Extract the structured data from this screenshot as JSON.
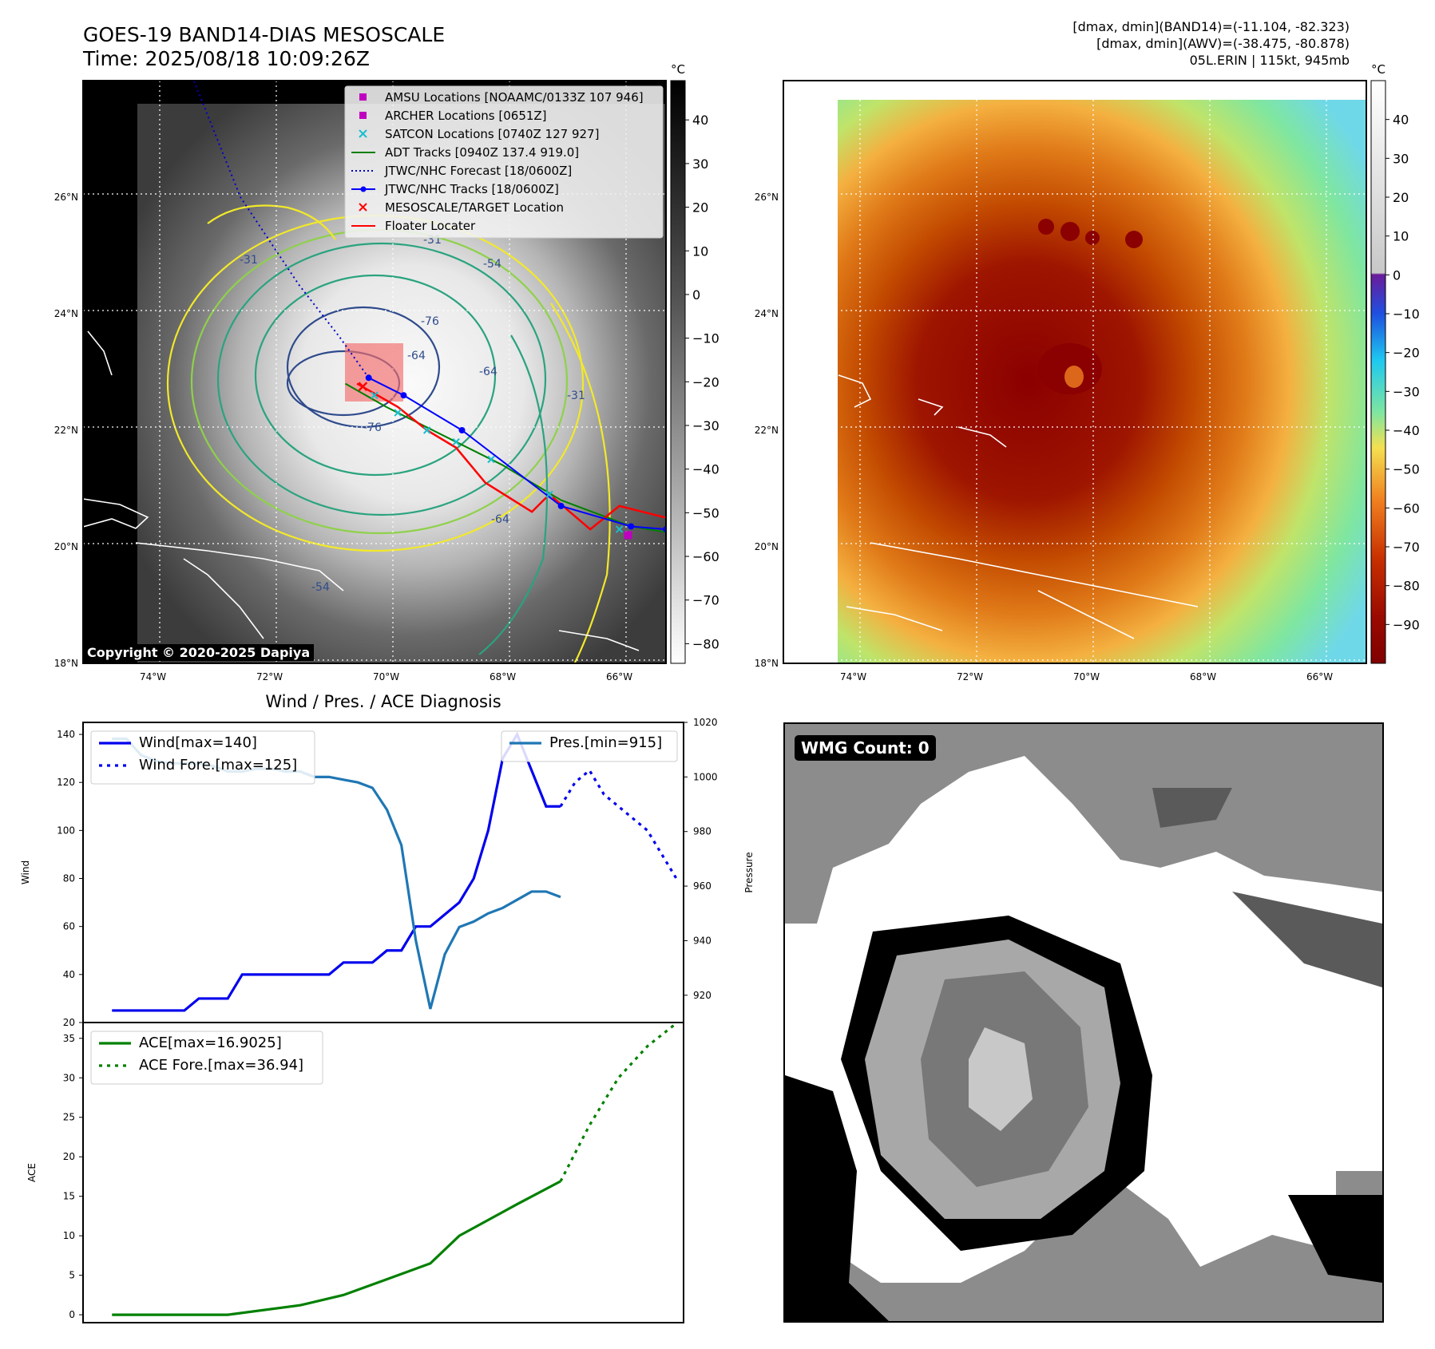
{
  "header": {
    "title_line1": "GOES-19 BAND14-DIAS MESOSCALE",
    "title_line2": "Time: 2025/08/18 10:09:26Z",
    "stats_line1": "[dmax, dmin](BAND14)=(-11.104, -82.323)",
    "stats_line2": "[dmax, dmin](AWV)=(-38.475, -80.878)",
    "stats_line3": "05L.ERIN | 115kt, 945mb"
  },
  "map": {
    "lon_labels": [
      "74°W",
      "72°W",
      "70°W",
      "68°W",
      "66°W"
    ],
    "lon_values": [
      -74,
      -72,
      -70,
      -68,
      -66
    ],
    "lat_labels": [
      "26°N",
      "24°N",
      "22°N",
      "20°N",
      "18°N"
    ],
    "lat_values": [
      26,
      24,
      22,
      20,
      18
    ],
    "lon_range": [
      -75.2,
      -65.2
    ],
    "lat_range": [
      18.0,
      28.0
    ],
    "copyright": "Copyright © 2020-2025 Dapiya",
    "contour_labels": [
      "-76",
      "-76",
      "-64",
      "-64",
      "-64",
      "-54",
      "-54",
      "-31",
      "-31",
      "-31"
    ],
    "legend": [
      {
        "label": "AMSU Locations [NOAAMC/0133Z 107 946]",
        "marker": "square",
        "color": "#c000c0"
      },
      {
        "label": "ARCHER Locations [0651Z]",
        "marker": "square",
        "color": "#c000c0"
      },
      {
        "label": "SATCON Locations [0740Z 127 927]",
        "marker": "x",
        "color": "#17becf"
      },
      {
        "label": "ADT Tracks [0940Z 137.4 919.0]",
        "marker": "line",
        "color": "#008000"
      },
      {
        "label": "JTWC/NHC Forecast [18/0600Z]",
        "marker": "dotted",
        "color": "#0000cc"
      },
      {
        "label": "JTWC/NHC Tracks [18/0600Z]",
        "marker": "line-dot",
        "color": "#0000ff"
      },
      {
        "label": "MESOSCALE/TARGET Location",
        "marker": "x",
        "color": "#ff0000"
      },
      {
        "label": "Floater Locater",
        "marker": "line",
        "color": "#ff0000"
      }
    ],
    "tracks": {
      "jtwc_lon": [
        -65.2,
        -65.8,
        -67.0,
        -68.7,
        -69.7,
        -70.3
      ],
      "jtwc_lat": [
        20.3,
        20.35,
        20.7,
        22.0,
        22.6,
        22.9
      ],
      "forecast_lon": [
        -70.3,
        -70.8,
        -71.5,
        -72.5,
        -73.3
      ],
      "forecast_lat": [
        22.9,
        23.6,
        24.5,
        26.0,
        28.0
      ],
      "adt_lon": [
        -65.2,
        -65.8,
        -67.0,
        -68.0,
        -69.0,
        -70.0,
        -70.7
      ],
      "adt_lat": [
        20.25,
        20.35,
        20.8,
        21.4,
        21.9,
        22.4,
        22.8
      ],
      "floater_lon": [
        -65.2,
        -66.0,
        -66.5,
        -67.2,
        -67.5,
        -68.3,
        -68.8,
        -69.3,
        -69.8,
        -70.5
      ],
      "floater_lat": [
        20.5,
        20.7,
        20.3,
        20.9,
        20.6,
        21.1,
        21.7,
        22.0,
        22.4,
        22.8
      ],
      "satcon_lon": [
        -66.0,
        -67.2,
        -68.2,
        -68.8,
        -69.3,
        -69.8,
        -70.2
      ],
      "satcon_lat": [
        20.3,
        20.9,
        21.5,
        21.8,
        22.0,
        22.3,
        22.6
      ],
      "amsu_lon": [
        -65.85
      ],
      "amsu_lat": [
        20.2
      ],
      "target_lon": [
        -70.4
      ],
      "target_lat": [
        22.75
      ]
    }
  },
  "colorbar_left": {
    "unit": "°C",
    "ticks": [
      "40",
      "30",
      "20",
      "10",
      "0",
      "−10",
      "−20",
      "−30",
      "−40",
      "−50",
      "−60",
      "−70",
      "−80"
    ],
    "values": [
      40,
      30,
      20,
      10,
      0,
      -10,
      -20,
      -30,
      -40,
      -50,
      -60,
      -70,
      -80
    ],
    "range": [
      -84.5,
      49
    ]
  },
  "colorbar_right": {
    "unit": "°C",
    "ticks": [
      "40",
      "30",
      "20",
      "10",
      "0",
      "−10",
      "−20",
      "−30",
      "−40",
      "−50",
      "−60",
      "−70",
      "−80",
      "−90"
    ],
    "values": [
      40,
      30,
      20,
      10,
      0,
      -10,
      -20,
      -30,
      -40,
      -50,
      -60,
      -70,
      -80,
      -90
    ],
    "range": [
      -100,
      50
    ]
  },
  "chart_data": [
    {
      "type": "line",
      "title": "Wind / Pres. / ACE Diagnosis",
      "ylabel": "Wind",
      "ylabel_right": "Pressure",
      "ylim": [
        20,
        145
      ],
      "ylim_right": [
        910,
        1020
      ],
      "yticks": [
        20,
        40,
        60,
        80,
        100,
        120,
        140
      ],
      "yticks_right": [
        920,
        940,
        960,
        980,
        1000,
        1020
      ],
      "xlim": [
        0,
        41.5
      ],
      "series": [
        {
          "name": "Wind[max=140]",
          "axis": "left",
          "style": "solid",
          "color": "#0000ee",
          "x": [
            2,
            3,
            4,
            5,
            6,
            7,
            8,
            9,
            10,
            11,
            12,
            13,
            14,
            15,
            16,
            17,
            18,
            19,
            20,
            21,
            22,
            23,
            24,
            25,
            26,
            27,
            28,
            29,
            30,
            31,
            32,
            33
          ],
          "values": [
            25,
            25,
            25,
            25,
            25,
            25,
            30,
            30,
            30,
            40,
            40,
            40,
            40,
            40,
            40,
            40,
            45,
            45,
            45,
            50,
            50,
            60,
            60,
            65,
            70,
            80,
            100,
            130,
            140,
            125,
            110,
            110
          ]
        },
        {
          "name": "Wind Fore.[max=125]",
          "axis": "left",
          "style": "dotted",
          "color": "#0000ee",
          "x": [
            33,
            34,
            35,
            36,
            37,
            38,
            39,
            40,
            41
          ],
          "values": [
            110,
            120,
            125,
            115,
            110,
            105,
            100,
            90,
            80
          ]
        },
        {
          "name": "Pres.[min=915]",
          "axis": "right",
          "style": "solid",
          "color": "#1f77b4",
          "x": [
            2,
            3,
            4,
            5,
            6,
            7,
            8,
            9,
            10,
            11,
            12,
            13,
            14,
            15,
            16,
            17,
            18,
            19,
            20,
            21,
            22,
            23,
            24,
            25,
            26,
            27,
            28,
            29,
            30,
            31,
            32,
            33
          ],
          "values": [
            1014,
            1014,
            1008,
            1006,
            1005,
            1005,
            1005,
            1004,
            1002,
            1002,
            1003,
            1003,
            1002,
            1002,
            1000,
            1000,
            999,
            998,
            996,
            988,
            975,
            940,
            915,
            935,
            945,
            947,
            950,
            952,
            955,
            958,
            958,
            956
          ]
        },
        {
          "name": "",
          "axis": "left",
          "style": "dotted",
          "color": "#0000ee",
          "note_only": true,
          "x": [],
          "values": []
        }
      ]
    },
    {
      "type": "line",
      "ylabel": "ACE",
      "ylim": [
        -1,
        37
      ],
      "yticks": [
        0,
        5,
        10,
        15,
        20,
        25,
        30,
        35
      ],
      "xlim": [
        0,
        41.5
      ],
      "series": [
        {
          "name": "ACE[max=16.9025]",
          "style": "solid",
          "color": "#008000",
          "x": [
            2,
            5,
            10,
            15,
            18,
            21,
            24,
            26,
            28,
            30,
            33
          ],
          "values": [
            0,
            0,
            0,
            1.2,
            2.5,
            4.5,
            6.5,
            10,
            12,
            14,
            16.9
          ]
        },
        {
          "name": "ACE Fore.[max=36.94]",
          "style": "dotted",
          "color": "#008000",
          "x": [
            33,
            35,
            37,
            39,
            41
          ],
          "values": [
            16.9,
            24,
            30,
            34,
            36.9
          ]
        }
      ]
    }
  ],
  "wmg": {
    "label": "WMG Count: 0"
  }
}
